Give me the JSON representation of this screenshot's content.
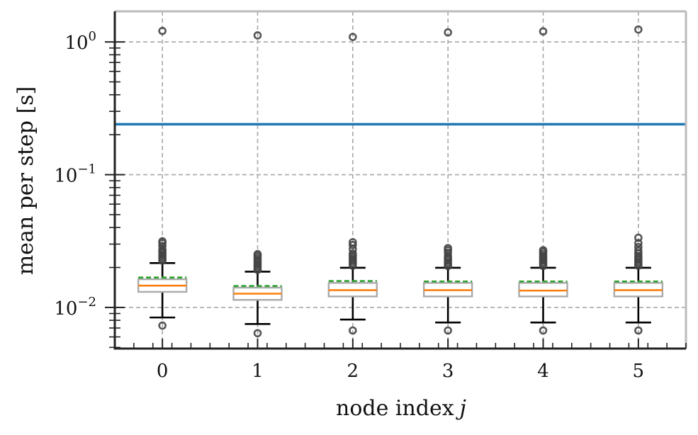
{
  "chart_data": {
    "type": "box",
    "xlabel": "node index",
    "xlabel_var": "j",
    "ylabel": "mean per step [s]",
    "yscale": "log",
    "ylim": [
      0.0049,
      1.7
    ],
    "xlim": [
      -0.5,
      5.5
    ],
    "grid": true,
    "categories": [
      "0",
      "1",
      "2",
      "3",
      "4",
      "5"
    ],
    "y_ticks": [
      {
        "value": 1,
        "base": "10",
        "exp": "0"
      },
      {
        "value": 0.1,
        "base": "10",
        "exp": "−1"
      },
      {
        "value": 0.01,
        "base": "10",
        "exp": "−2"
      }
    ],
    "reference_line": {
      "value": 0.24,
      "color": "#1f77b4"
    },
    "boxes": [
      {
        "x": 0,
        "q1": 0.0131,
        "median": 0.0146,
        "q3": 0.0163,
        "mean": 0.0168,
        "whislo": 0.0084,
        "whishi": 0.0216,
        "fliers": [
          0.0073,
          0.0225,
          0.0232,
          0.024,
          0.0248,
          0.0256,
          0.0265,
          0.0273,
          0.029,
          0.0305,
          0.0315,
          1.21
        ]
      },
      {
        "x": 1,
        "q1": 0.0114,
        "median": 0.0127,
        "q3": 0.0141,
        "mean": 0.0145,
        "whislo": 0.0075,
        "whishi": 0.0186,
        "fliers": [
          0.0064,
          0.0192,
          0.0198,
          0.0205,
          0.0212,
          0.022,
          0.0228,
          0.0236,
          0.0245,
          0.0252,
          1.12
        ]
      },
      {
        "x": 2,
        "q1": 0.0121,
        "median": 0.0135,
        "q3": 0.0153,
        "mean": 0.0158,
        "whislo": 0.0081,
        "whishi": 0.0199,
        "fliers": [
          0.0067,
          0.0206,
          0.0214,
          0.0222,
          0.023,
          0.0238,
          0.0246,
          0.0255,
          0.0275,
          0.0295,
          0.031,
          1.09
        ]
      },
      {
        "x": 3,
        "q1": 0.0121,
        "median": 0.0135,
        "q3": 0.0153,
        "mean": 0.0157,
        "whislo": 0.0077,
        "whishi": 0.0199,
        "fliers": [
          0.0067,
          0.0205,
          0.0212,
          0.0219,
          0.0227,
          0.0235,
          0.0243,
          0.0258,
          0.027,
          0.028,
          1.18
        ]
      },
      {
        "x": 4,
        "q1": 0.0121,
        "median": 0.0134,
        "q3": 0.0153,
        "mean": 0.0157,
        "whislo": 0.0077,
        "whishi": 0.0199,
        "fliers": [
          0.0067,
          0.0205,
          0.0212,
          0.0219,
          0.0227,
          0.0235,
          0.0243,
          0.0252,
          0.0262,
          0.027,
          1.2
        ]
      },
      {
        "x": 5,
        "q1": 0.0121,
        "median": 0.0135,
        "q3": 0.0153,
        "mean": 0.0157,
        "whislo": 0.0077,
        "whishi": 0.0199,
        "fliers": [
          0.0067,
          0.0206,
          0.0213,
          0.022,
          0.0228,
          0.0236,
          0.0244,
          0.0255,
          0.0268,
          0.0285,
          0.0305,
          0.0335,
          1.24
        ]
      }
    ],
    "colors": {
      "box": "#aaaaaa",
      "median": "#ff7f0e",
      "mean": "#2ca02c",
      "whisker": "#000000",
      "flier": "#444444",
      "grid": "#a8a8a8",
      "spine_dark": "#222222",
      "spine_light": "#bbbbbb"
    }
  }
}
